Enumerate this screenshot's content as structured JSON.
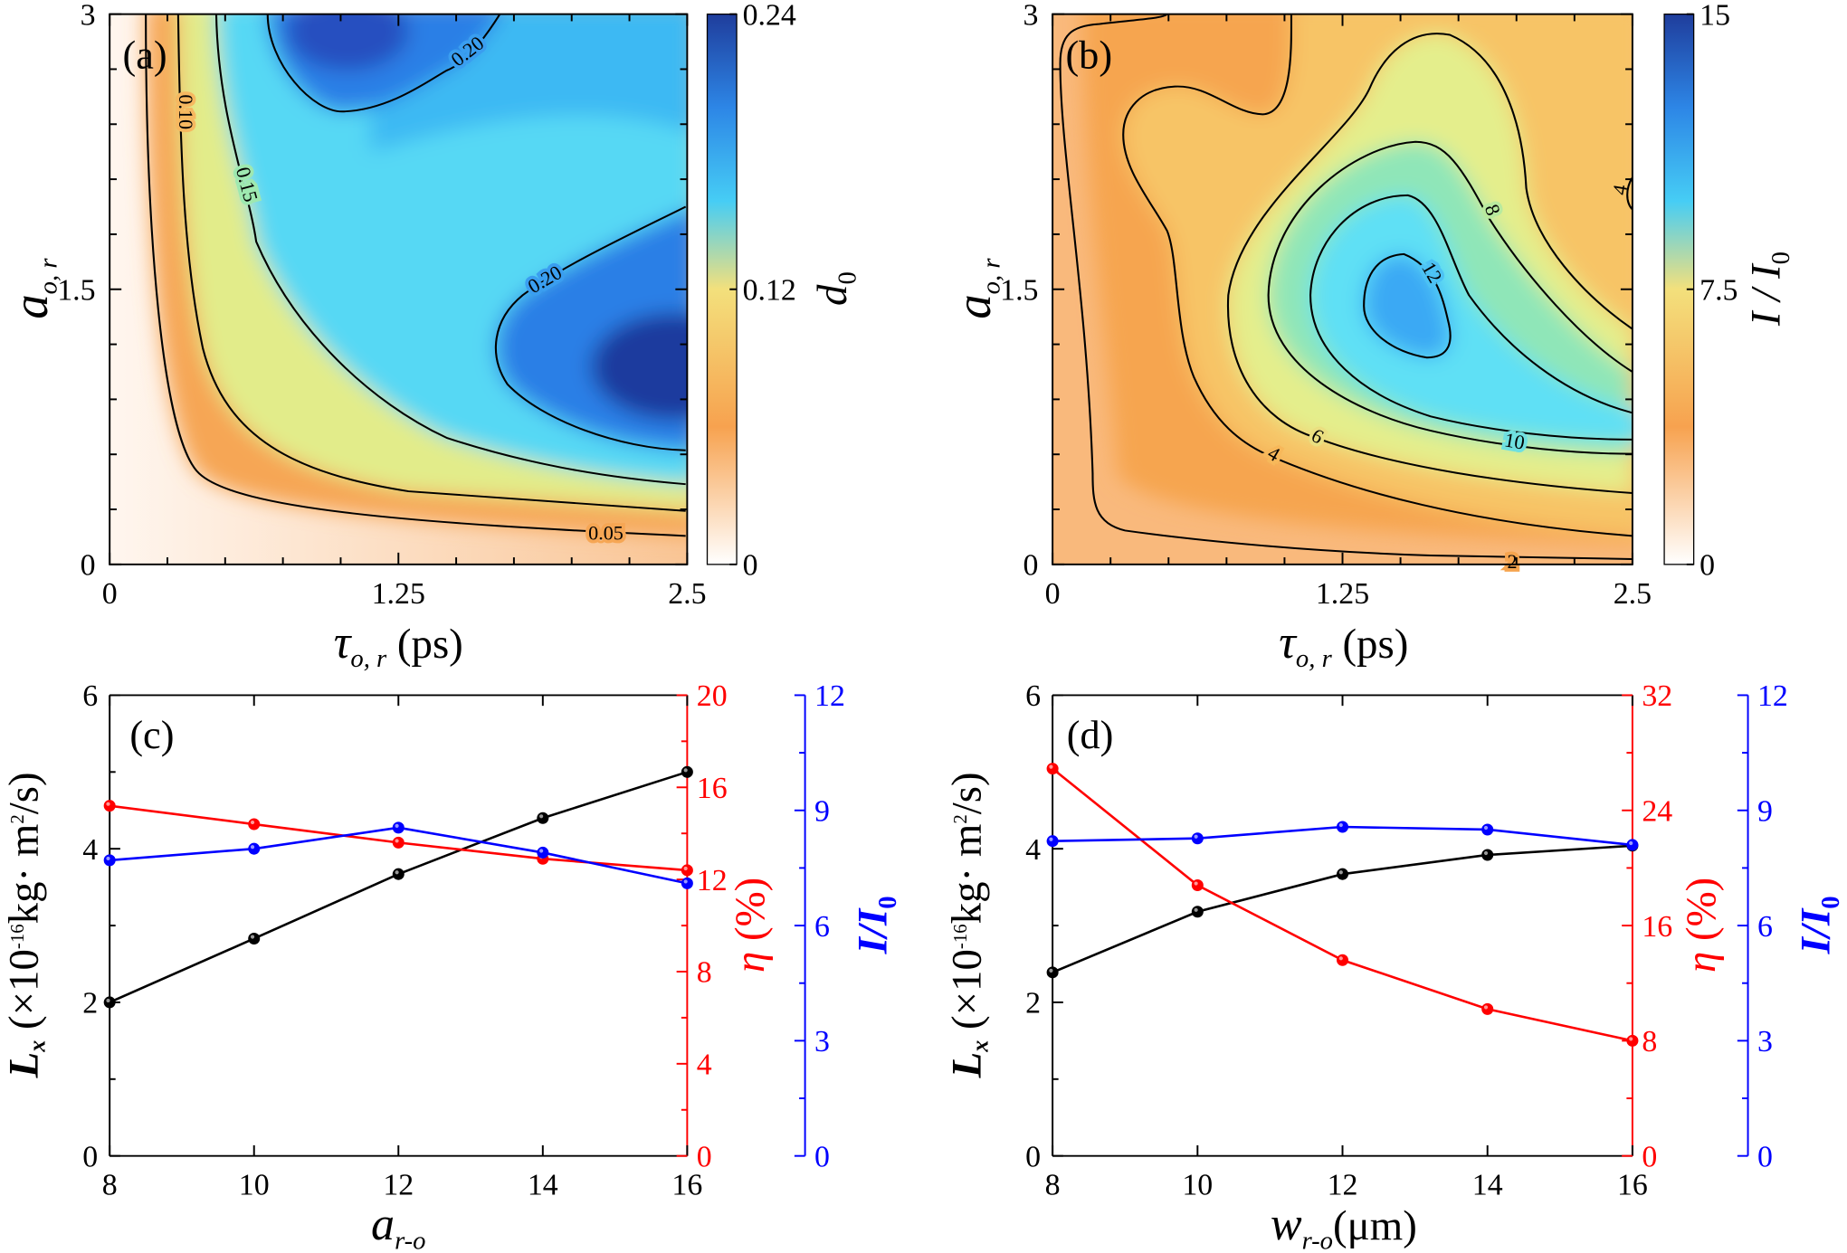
{
  "chart_data": [
    {
      "type": "heatmap",
      "panel_label": "(a)",
      "xlabel": {
        "main": "τ",
        "sub": "o, r",
        "rest": " (ps)"
      },
      "ylabel": {
        "main": "a",
        "sub": "o, r"
      },
      "xlim": [
        0,
        2.5
      ],
      "ylim": [
        0,
        3
      ],
      "xticks": [
        0,
        1.25,
        2.5
      ],
      "xtick_labels": [
        "0",
        "1.25",
        "2.5"
      ],
      "yticks": [
        0,
        1.5,
        3
      ],
      "ytick_labels": [
        "0",
        "1.5",
        "3"
      ],
      "colorbar": {
        "lim": [
          0,
          0.24
        ],
        "ticks": [
          0,
          0.12,
          0.24
        ],
        "tick_labels": [
          "0",
          "0.12",
          "0.24"
        ],
        "label": {
          "main": "d",
          "sub": "0"
        },
        "colors": [
          "#ffffff",
          "#f7a24f",
          "#f3e07c",
          "#46cdf5",
          "#2d86e6",
          "#1f3d9c"
        ]
      },
      "contour_labels": [
        "0.05",
        "0.10",
        "0.15",
        "0.20",
        "0.20"
      ]
    },
    {
      "type": "heatmap",
      "panel_label": "(b)",
      "xlabel": {
        "main": "τ",
        "sub": "o, r",
        "rest": " (ps)"
      },
      "ylabel": {
        "main": "a",
        "sub": "o, r"
      },
      "xlim": [
        0,
        2.5
      ],
      "ylim": [
        0,
        3
      ],
      "xticks": [
        0,
        1.25,
        2.5
      ],
      "xtick_labels": [
        "0",
        "1.25",
        "2.5"
      ],
      "yticks": [
        0,
        1.5,
        3
      ],
      "ytick_labels": [
        "0",
        "1.5",
        "3"
      ],
      "colorbar": {
        "lim": [
          0,
          15
        ],
        "ticks": [
          0,
          7.5,
          15
        ],
        "tick_labels": [
          "0",
          "7.5",
          "15"
        ],
        "label": {
          "main": "I / I",
          "sub": "0"
        },
        "colors": [
          "#ffffff",
          "#f7a24f",
          "#f3e07c",
          "#46cdf5",
          "#2d86e6",
          "#1f3d9c"
        ]
      },
      "contour_labels": [
        "2",
        "4",
        "6",
        "8",
        "10",
        "12",
        "4"
      ]
    },
    {
      "type": "line",
      "panel_label": "(c)",
      "x": [
        8,
        10,
        12,
        14,
        16
      ],
      "xlim": [
        8,
        16
      ],
      "xticks": [
        8,
        10,
        12,
        14,
        16
      ],
      "xlabel": {
        "main": "a",
        "sub": "r-o",
        "rest": ""
      },
      "axes": {
        "left": {
          "lim": [
            0,
            6
          ],
          "ticks": [
            0,
            2,
            4,
            6
          ],
          "minor": 1,
          "color": "#000000",
          "label": {
            "main": "L",
            "sub": "x",
            "r1": " (×10",
            "sup1": "-16",
            "r2": "kg· m",
            "sup2": "2",
            "r3": "/s)"
          }
        },
        "right1": {
          "lim": [
            0,
            20
          ],
          "ticks": [
            0,
            4,
            8,
            12,
            16,
            20
          ],
          "minor": 2,
          "color": "#ff0000",
          "label": {
            "main": "η",
            "rest": " (%)"
          }
        },
        "right2": {
          "lim": [
            0,
            12
          ],
          "ticks": [
            0,
            3,
            6,
            9,
            12
          ],
          "minor": 1.5,
          "color": "#0000ff",
          "label": {
            "main": "I/I",
            "sub": "0"
          }
        }
      },
      "series": [
        {
          "axis": "left",
          "color": "#000000",
          "values": [
            2.0,
            2.83,
            3.67,
            4.4,
            5.0
          ]
        },
        {
          "axis": "right1",
          "color": "#ff0000",
          "values": [
            15.2,
            14.4,
            13.6,
            12.9,
            12.4
          ]
        },
        {
          "axis": "right2",
          "color": "#0000ff",
          "values": [
            7.7,
            8.0,
            8.55,
            7.9,
            7.1
          ]
        }
      ]
    },
    {
      "type": "line",
      "panel_label": "(d)",
      "x": [
        8,
        10,
        12,
        14,
        16
      ],
      "xlim": [
        8,
        16
      ],
      "xticks": [
        8,
        10,
        12,
        14,
        16
      ],
      "xlabel": {
        "main": "w",
        "sub": "r-o",
        "rest": "(μm)"
      },
      "axes": {
        "left": {
          "lim": [
            0,
            6
          ],
          "ticks": [
            0,
            2,
            4,
            6
          ],
          "minor": 1,
          "color": "#000000",
          "label": {
            "main": "L",
            "sub": "x",
            "r1": " (×10",
            "sup1": "-16",
            "r2": "kg· m",
            "sup2": "2",
            "r3": "/s)"
          }
        },
        "right1": {
          "lim": [
            0,
            32
          ],
          "ticks": [
            0,
            8,
            16,
            24,
            32
          ],
          "minor": 4,
          "color": "#ff0000",
          "label": {
            "main": "η",
            "rest": " (%)"
          }
        },
        "right2": {
          "lim": [
            0,
            12
          ],
          "ticks": [
            0,
            3,
            6,
            9,
            12
          ],
          "minor": 1.5,
          "color": "#0000ff",
          "label": {
            "main": "I/I",
            "sub": "0"
          }
        }
      },
      "series": [
        {
          "axis": "left",
          "color": "#000000",
          "values": [
            2.39,
            3.18,
            3.67,
            3.92,
            4.04
          ]
        },
        {
          "axis": "right1",
          "color": "#ff0000",
          "values": [
            26.9,
            18.8,
            13.6,
            10.2,
            8.0
          ]
        },
        {
          "axis": "right2",
          "color": "#0000ff",
          "values": [
            8.2,
            8.27,
            8.57,
            8.5,
            8.1
          ]
        }
      ]
    }
  ]
}
